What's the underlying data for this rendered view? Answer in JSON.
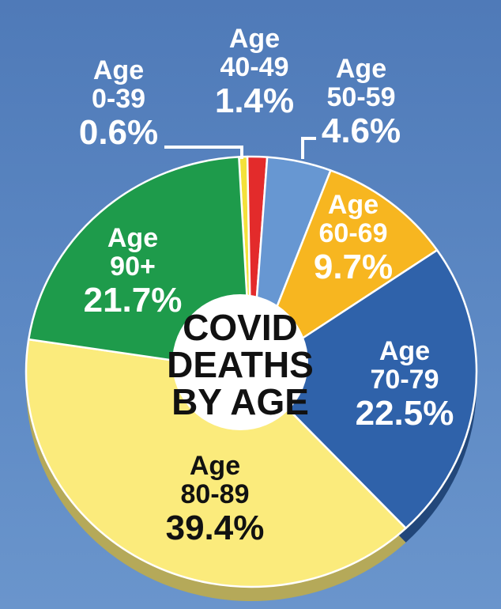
{
  "chart_data": {
    "type": "pie",
    "title_lines": [
      "COVID",
      "DEATHS",
      "BY AGE"
    ],
    "slices": [
      {
        "label": "0-39",
        "value": 0.6,
        "pct_label": "0.6%",
        "color": "#f4e13a",
        "text_color": "#ffffff"
      },
      {
        "label": "40-49",
        "value": 1.4,
        "pct_label": "1.4%",
        "color": "#e32b2b",
        "text_color": "#ffffff"
      },
      {
        "label": "50-59",
        "value": 4.6,
        "pct_label": "4.6%",
        "color": "#6797d2",
        "text_color": "#ffffff"
      },
      {
        "label": "60-69",
        "value": 9.7,
        "pct_label": "9.7%",
        "color": "#f7b620",
        "text_color": "#ffffff"
      },
      {
        "label": "70-79",
        "value": 22.5,
        "pct_label": "22.5%",
        "color": "#2f62aa",
        "text_color": "#ffffff"
      },
      {
        "label": "80-89",
        "value": 39.4,
        "pct_label": "39.4%",
        "color": "#fbeb7c",
        "text_color": "#111111"
      },
      {
        "label": "90+",
        "value": 21.7,
        "pct_label": "21.7%",
        "color": "#1e9b4b",
        "text_color": "#ffffff"
      }
    ],
    "age_word": "Age"
  }
}
